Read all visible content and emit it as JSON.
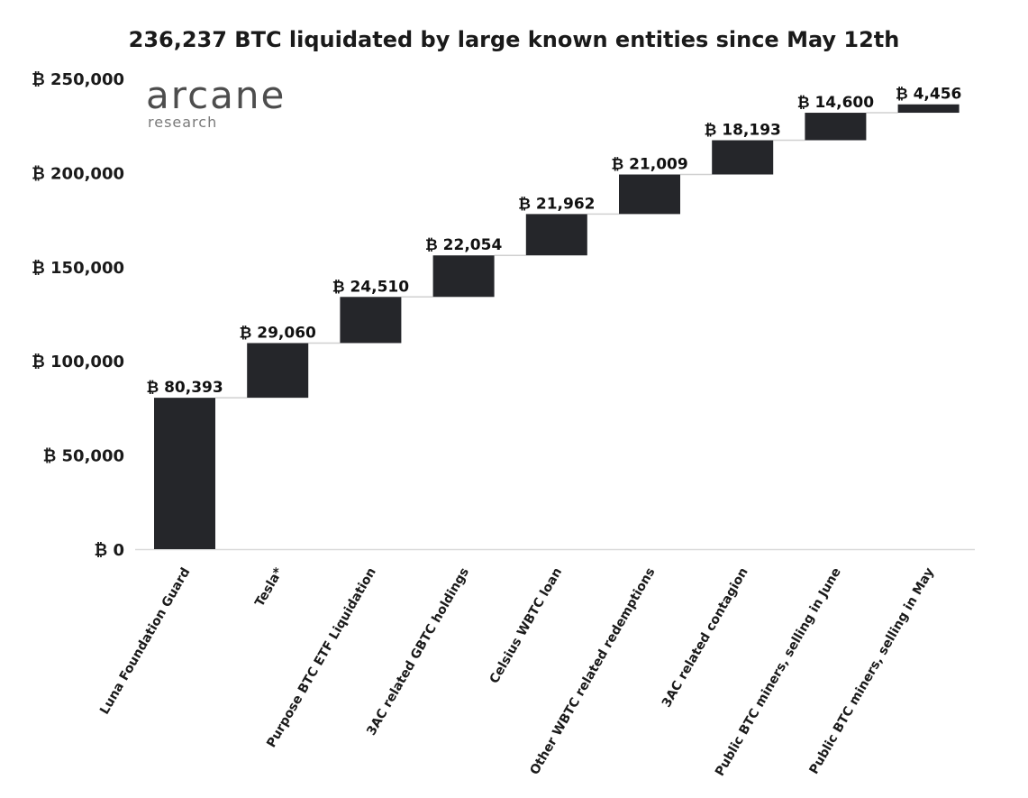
{
  "chart_data": {
    "type": "bar",
    "subtype": "waterfall",
    "title": "236,237 BTC liquidated by large known entities since May 12th",
    "xlabel": "",
    "ylabel": "",
    "ylim": [
      0,
      250000
    ],
    "yticks": [
      0,
      50000,
      100000,
      150000,
      200000,
      250000
    ],
    "ytick_labels": [
      "₿ 0",
      "₿ 50,000",
      "₿ 100,000",
      "₿ 150,000",
      "₿ 200,000",
      "₿ 250,000"
    ],
    "categories": [
      "Luna Foundation Guard",
      "Tesla*",
      "Purpose BTC ETF Liquidation",
      "3AC related GBTC holdings",
      "Celsius WBTC loan",
      "Other WBTC related redemptions",
      "3AC related contagion",
      "Public BTC miners, selling in June",
      "Public BTC miners, selling in May"
    ],
    "values": [
      80393,
      29060,
      24510,
      22054,
      21962,
      21009,
      18193,
      14600,
      4456
    ],
    "data_labels": [
      "₿ 80,393",
      "₿ 29,060",
      "₿ 24,510",
      "₿ 22,054",
      "₿ 21,962",
      "₿ 21,009",
      "₿ 18,193",
      "₿ 14,600",
      "₿ 4,456"
    ],
    "bar_color": "#25262a",
    "connector_color": "#d0d0d0",
    "grid": false
  },
  "watermark": {
    "name": "arcane",
    "sub": "research"
  }
}
